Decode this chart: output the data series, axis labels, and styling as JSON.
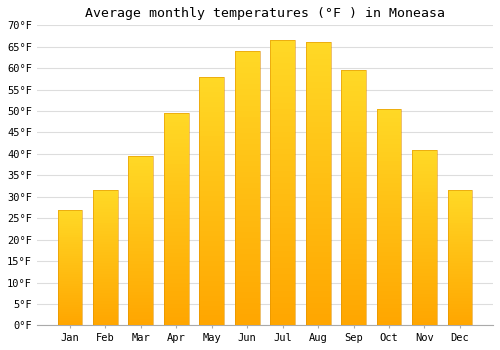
{
  "title": "Average monthly temperatures (°F ) in Moneasa",
  "months": [
    "Jan",
    "Feb",
    "Mar",
    "Apr",
    "May",
    "Jun",
    "Jul",
    "Aug",
    "Sep",
    "Oct",
    "Nov",
    "Dec"
  ],
  "values": [
    27,
    31.5,
    39.5,
    49.5,
    58,
    64,
    66.5,
    66,
    59.5,
    50.5,
    41,
    31.5
  ],
  "bar_color_top": "#FFA500",
  "bar_color_bottom": "#FFD060",
  "bar_edge_color": "#E09000",
  "background_color": "#ffffff",
  "plot_bg_color": "#ffffff",
  "grid_color": "#dddddd",
  "ylim": [
    0,
    70
  ],
  "yticks": [
    0,
    5,
    10,
    15,
    20,
    25,
    30,
    35,
    40,
    45,
    50,
    55,
    60,
    65,
    70
  ],
  "ylabel_suffix": "°F",
  "title_fontsize": 9.5,
  "tick_fontsize": 7.5,
  "font_family": "monospace"
}
